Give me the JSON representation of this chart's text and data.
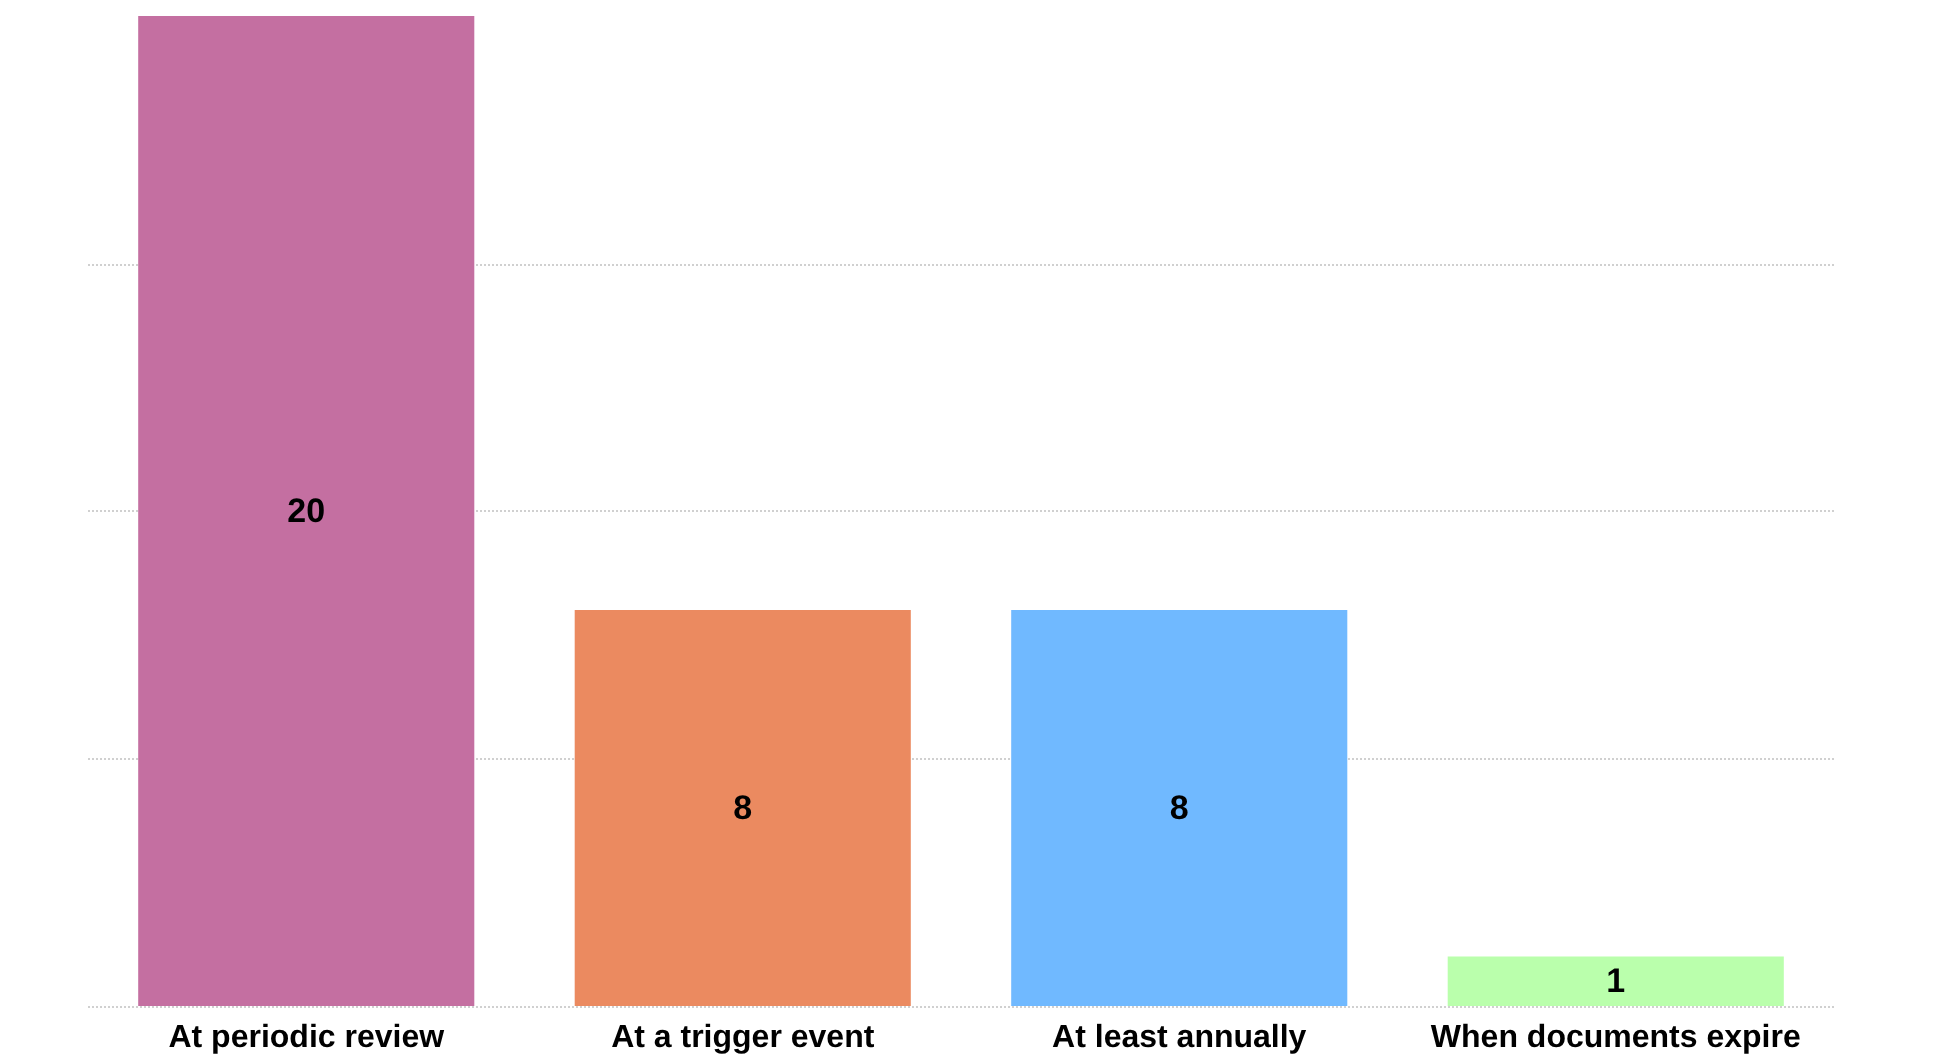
{
  "chart_data": {
    "type": "bar",
    "categories": [
      "At periodic review",
      "At a trigger event",
      "At least annually",
      "When documents expire"
    ],
    "values": [
      20,
      8,
      8,
      1
    ],
    "colors": [
      "#c46fa1",
      "#eb8a60",
      "#70b9ff",
      "#baffac"
    ],
    "ylim": [
      0,
      20
    ],
    "yticks": [
      {
        "value": 0,
        "label": null
      },
      {
        "value": 5,
        "label": null
      },
      {
        "value": 10,
        "label": null
      },
      {
        "value": 15,
        "label": null
      }
    ],
    "tick_labels": "x",
    "grid": "y",
    "data_labels": true
  }
}
